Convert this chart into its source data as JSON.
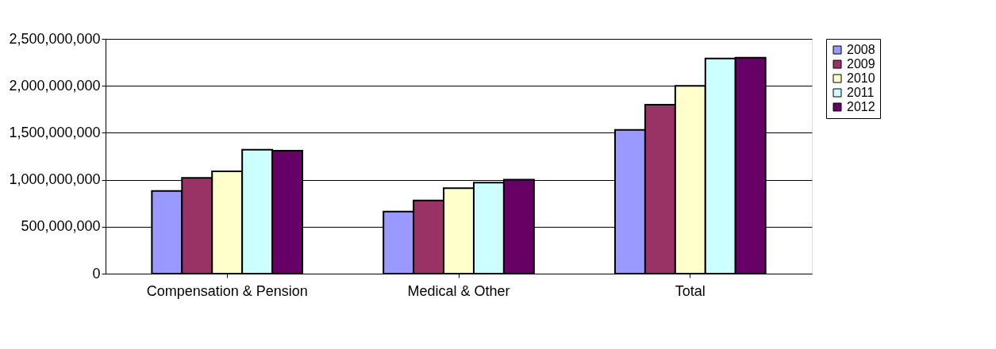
{
  "chart_data": {
    "type": "bar",
    "categories": [
      "Compensation & Pension",
      "Medical & Other",
      "Total"
    ],
    "series": [
      {
        "name": "2008",
        "color": "#9999ff",
        "values": [
          880000000,
          660000000,
          1530000000
        ]
      },
      {
        "name": "2009",
        "color": "#993366",
        "values": [
          1020000000,
          780000000,
          1800000000
        ]
      },
      {
        "name": "2010",
        "color": "#ffffcc",
        "values": [
          1090000000,
          910000000,
          2000000000
        ]
      },
      {
        "name": "2011",
        "color": "#ccffff",
        "values": [
          1320000000,
          970000000,
          2290000000
        ]
      },
      {
        "name": "2012",
        "color": "#660066",
        "values": [
          1310000000,
          1000000000,
          2300000000
        ]
      }
    ],
    "ylim": [
      0,
      2500000000
    ],
    "yticks": [
      0,
      {
        "value": 500000000,
        "label": "500,000,000"
      },
      {
        "value": 1000000000,
        "label": "1,000,000,000"
      },
      {
        "value": 1500000000,
        "label": "1,500,000,000"
      },
      {
        "value": 2000000000,
        "label": "2,000,000,000"
      },
      {
        "value": 2500000000,
        "label": "2,500,000,000"
      }
    ],
    "grid": "y",
    "legend": "right"
  }
}
